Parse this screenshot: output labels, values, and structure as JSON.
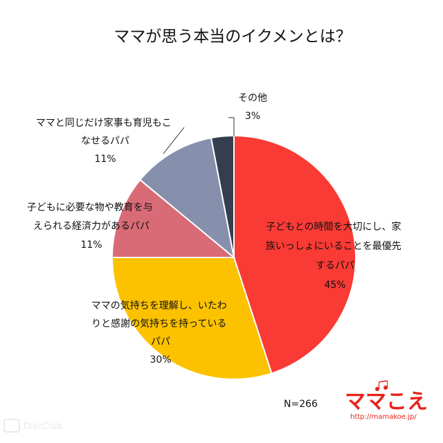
{
  "chart_data": {
    "type": "pie",
    "title": "ママが思う本当のイクメンとは？",
    "sample_note": "N=266",
    "slices": [
      {
        "label_lines": [
          "子どもとの時間を大切にし、家",
          "族いっしょにいることを最優先",
          "するパパ"
        ],
        "percent_label": "45%",
        "value": 45,
        "color": "#f93a35"
      },
      {
        "label_lines": [
          "ママの気持ちを理解し、いたわ",
          "りと感謝の気持ちを持っている",
          "パパ"
        ],
        "percent_label": "30%",
        "value": 30,
        "color": "#fcc200"
      },
      {
        "label_lines": [
          "子どもに必要な物や教育を与",
          "えられる経済力があるパパ"
        ],
        "percent_label": "11%",
        "value": 11,
        "color": "#d96b77"
      },
      {
        "label_lines": [
          "ママと同じだけ家事も育児もこ",
          "なせるパパ"
        ],
        "percent_label": "11%",
        "value": 11,
        "color": "#8690ad"
      },
      {
        "label_lines": [
          "その他"
        ],
        "percent_label": "3%",
        "value": 3,
        "color": "#333f4e"
      }
    ]
  },
  "logo": {
    "text": "ママこえ",
    "url": "http://mamakoe.jp/"
  },
  "watermark": {
    "text": "DietClub"
  }
}
